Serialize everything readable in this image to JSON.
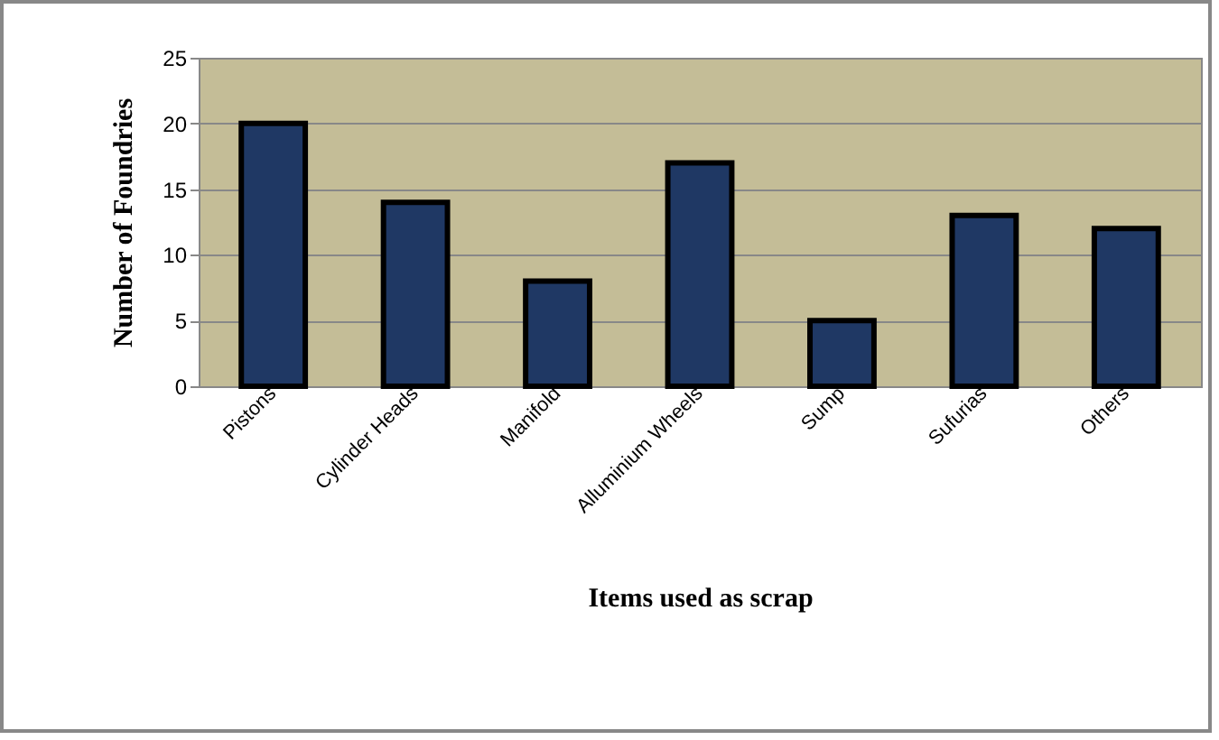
{
  "chart_data": {
    "type": "bar",
    "xlabel": "Items used as scrap",
    "ylabel": "Number of Foundries",
    "categories": [
      "Pistons",
      "Cylinder Heads",
      "Manifold",
      "Alluminium Wheels",
      "Sump",
      "Sufurias",
      "Others"
    ],
    "values": [
      20,
      14,
      8,
      17,
      5,
      13,
      12
    ],
    "color": "#1f3864",
    "ylim": [
      0,
      25
    ],
    "yticks": [
      0,
      5,
      10,
      15,
      20,
      25
    ],
    "grid": "y"
  }
}
